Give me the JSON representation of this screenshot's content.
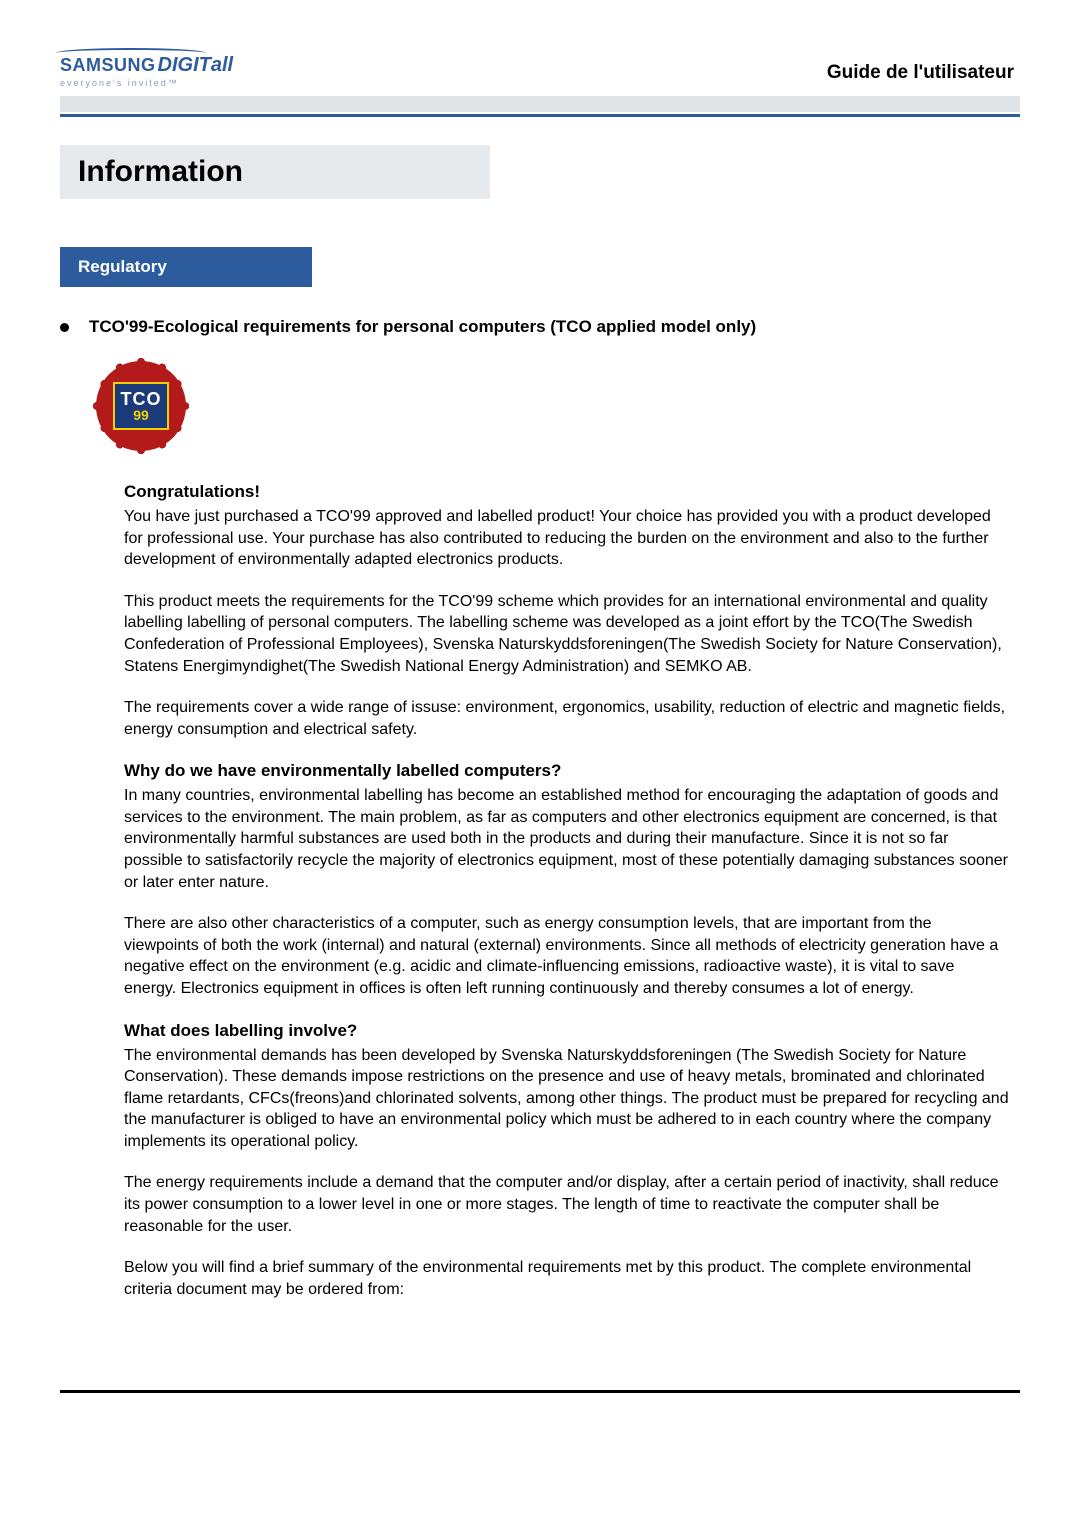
{
  "logo": {
    "brand1": "SAMSUNG",
    "brand2": "DIGIT",
    "brand3": "all",
    "tagline": "everyone's invited™"
  },
  "guide_title": "Guide de l'utilisateur",
  "banner_title": "Information",
  "section_tab": "Regulatory",
  "bullet_heading": "TCO'99-Ecological requirements for personal computers (TCO applied model only)",
  "tco_badge": {
    "line1": "TCO",
    "line2": "99"
  },
  "content": {
    "h1": "Congratulations!",
    "p1": "You have just purchased a TCO'99 approved and labelled product! Your choice has provided you with a product developed for professional use. Your purchase has also contributed to reducing the burden on the environment and also to the further development of environmentally adapted electronics products.",
    "p2": "This product meets the requirements for the TCO'99 scheme which provides for an international environmental and quality labelling labelling of personal computers. The labelling scheme was developed as a joint effort by the TCO(The Swedish Confederation of Professional Employees), Svenska Naturskyddsforeningen(The Swedish Society for Nature Conservation), Statens Energimyndighet(The Swedish National Energy Administration) and SEMKO AB.",
    "p3": "The requirements cover a wide range of issuse: environment, ergonomics, usability, reduction of electric and magnetic fields, energy consumption and electrical safety.",
    "h2": "Why do we have environmentally labelled computers?",
    "p4": "In many countries, environmental labelling has become an established method for encouraging the adaptation of goods and services to the environment. The main problem, as far as computers and other electronics equipment are concerned, is that environmentally harmful substances are used both in the products and during their manufacture. Since it is not so far possible to satisfactorily recycle the majority of electronics equipment, most of these potentially damaging substances sooner or later enter nature.",
    "p5": "There are also other characteristics of a computer, such as energy consumption levels, that are important from the viewpoints of both the work (internal) and natural (external) environments. Since all methods of electricity generation have a negative effect on the environment (e.g. acidic and climate-influencing emissions, radioactive waste), it is vital to save energy. Electronics equipment in offices is often left running continuously and thereby consumes a lot of energy.",
    "h3": "What does labelling involve?",
    "p6": "The environmental demands has been developed by Svenska Naturskyddsforeningen (The Swedish Society for Nature Conservation). These demands impose restrictions on the presence and use of heavy metals, brominated and chlorinated flame retardants, CFCs(freons)and chlorinated solvents, among other things. The product must be prepared for recycling and the manufacturer is obliged to have an environmental policy which must be adhered to in each country where the company implements its operational policy.",
    "p7": "The energy requirements include a demand that the computer and/or display, after a certain period of inactivity, shall reduce its power consumption to a lower level in one or more stages. The length of time to reactivate the computer shall be reasonable for the user.",
    "p8": "Below you will find a brief summary of the environmental requirements met by this product. The complete environmental criteria document may be ordered from:"
  },
  "colors": {
    "brand_blue": "#2d5c9e",
    "grey_bar": "#e1e4e7",
    "badge_red": "#b31b1b",
    "badge_blue": "#1b3a7a",
    "badge_gold": "#f0d000"
  }
}
